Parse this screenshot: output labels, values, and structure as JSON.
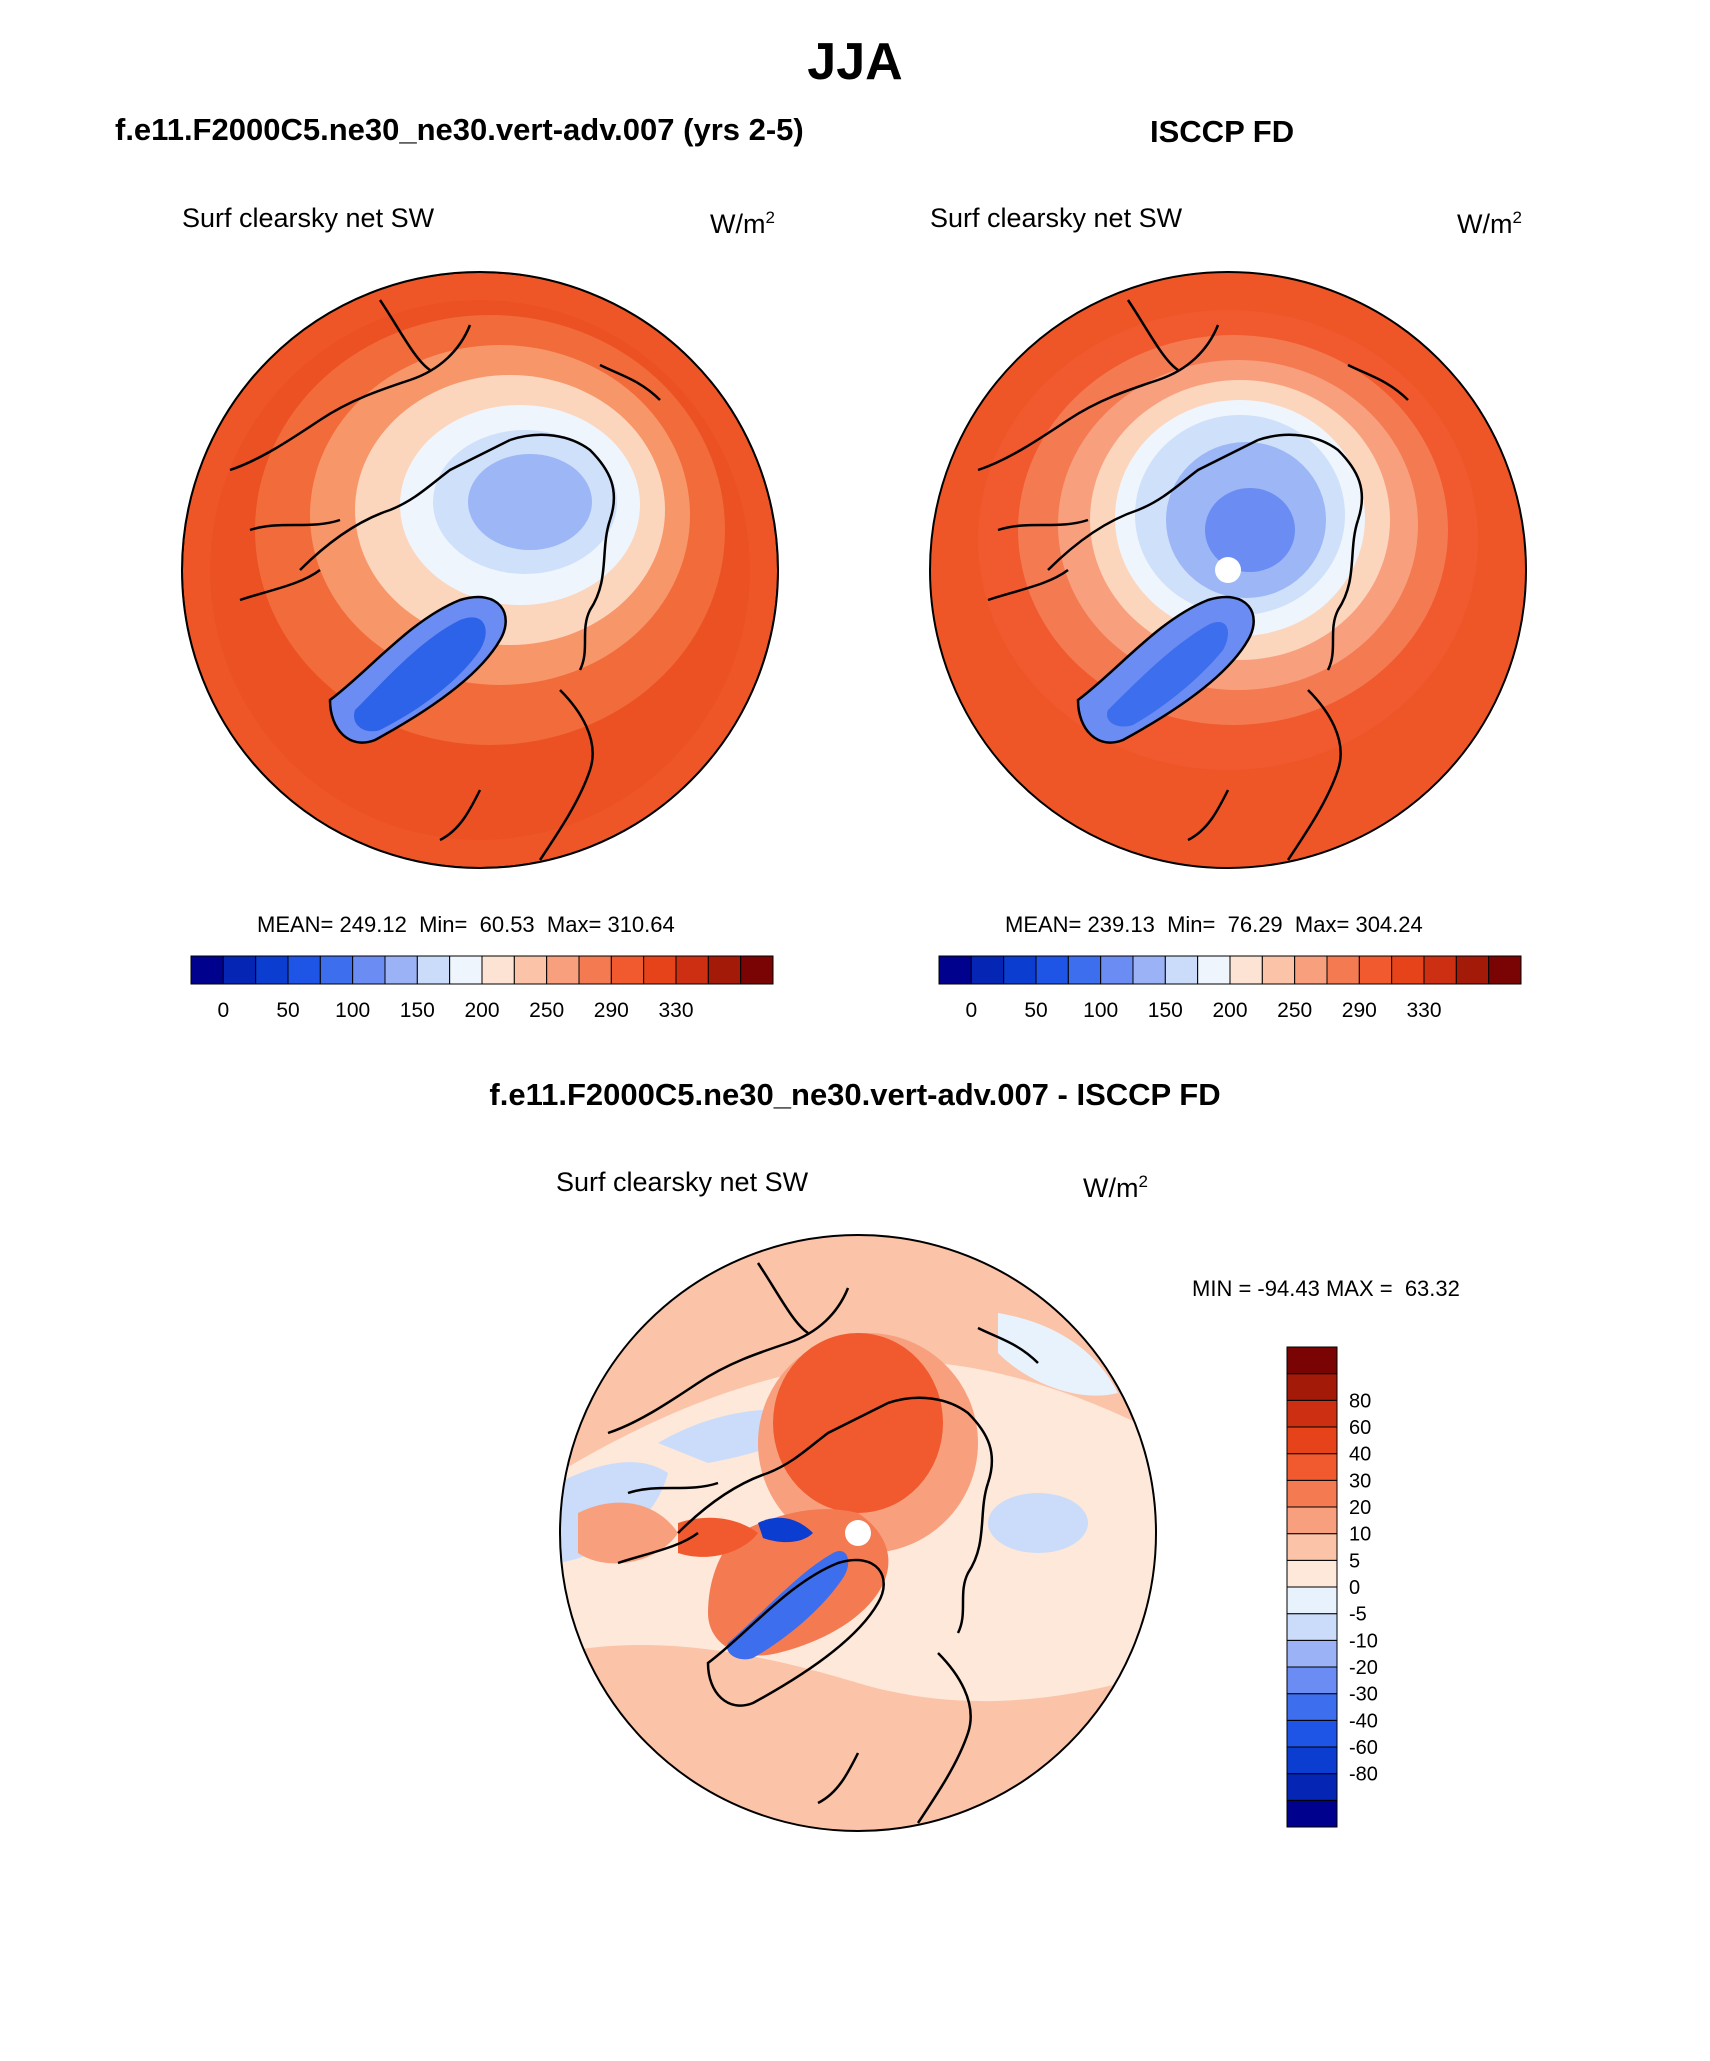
{
  "page": {
    "title": "JJA",
    "model_title": "f.e11.F2000C5.ne30_ne30.vert-adv.007 (yrs 2-5)",
    "obs_title": "ISCCP FD",
    "diff_title": "f.e11.F2000C5.ne30_ne30.vert-adv.007 - ISCCP FD"
  },
  "panels": {
    "model": {
      "variable": "Surf clearsky net SW",
      "units_base": "W/m",
      "units_exp": "2",
      "mean_label": "MEAN=",
      "mean": "249.12",
      "min_label": "Min=",
      "min": "60.53",
      "max_label": "Max=",
      "max": "310.64"
    },
    "obs": {
      "variable": "Surf clearsky net SW",
      "units_base": "W/m",
      "units_exp": "2",
      "mean_label": "MEAN=",
      "mean": "239.13",
      "min_label": "Min=",
      "min": "76.29",
      "max_label": "Max=",
      "max": "304.24"
    },
    "diff": {
      "variable": "Surf clearsky net SW",
      "units_base": "W/m",
      "units_exp": "2",
      "min_label": "MIN =",
      "min": "-94.43",
      "max_label": "MAX =",
      "max": "63.32"
    }
  },
  "colorbars": {
    "field": {
      "colors": [
        "#00028e",
        "#0526b4",
        "#0a3dd0",
        "#1f55e6",
        "#3d6eee",
        "#6b8cf2",
        "#9bb3f6",
        "#cadcfa",
        "#eef5fd",
        "#fde3d3",
        "#fbc3a7",
        "#f8a07e",
        "#f47a52",
        "#f05a2e",
        "#e7431b",
        "#cd2f12",
        "#a41a08",
        "#7a0403"
      ],
      "tick_labels": [
        "0",
        "50",
        "100",
        "150",
        "200",
        "250",
        "290",
        "330"
      ]
    },
    "diff": {
      "colors": [
        "#00028e",
        "#0526b4",
        "#0a3dd0",
        "#1f55e6",
        "#3d6eee",
        "#6b8cf2",
        "#9bb3f6",
        "#cadcfa",
        "#e8f2fd",
        "#fde8da",
        "#fbc3a7",
        "#f8a07e",
        "#f47a52",
        "#f05a2e",
        "#e7431b",
        "#cd2f12",
        "#a41a08",
        "#7a0403"
      ],
      "tick_labels": [
        "-80",
        "-60",
        "-40",
        "-30",
        "-20",
        "-10",
        "-5",
        "0",
        "5",
        "10",
        "20",
        "30",
        "40",
        "60",
        "80"
      ]
    }
  },
  "map_palette": {
    "ocean_warm": "#ee5628",
    "ring": "#f26b3a",
    "mid": "#f79668",
    "light": "#fcd5bd",
    "pale_blue": "#cfe0fb",
    "blue": "#9cb6f6",
    "deep_blue": "#2d63e8",
    "coast": "#000000"
  }
}
